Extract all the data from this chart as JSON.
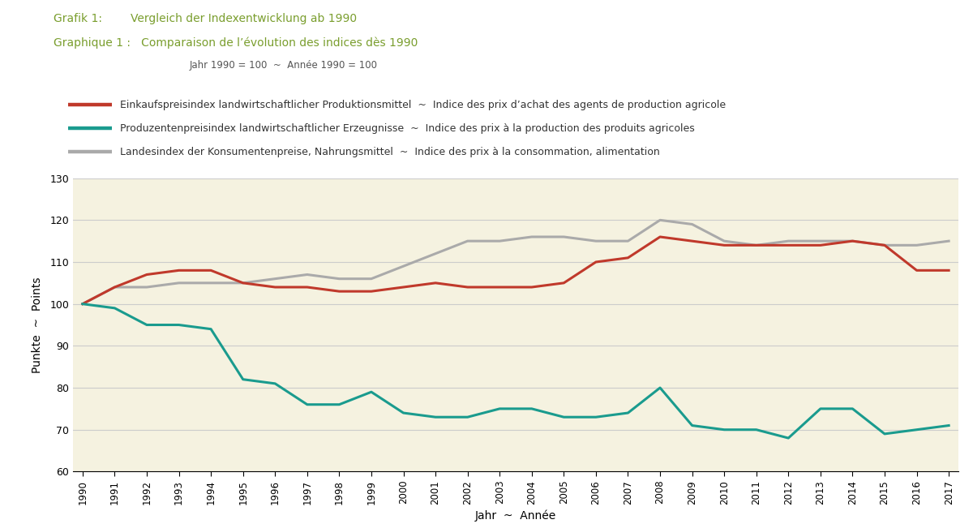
{
  "title_line1": "Grafik 1:        Vergleich der Indexentwicklung ab 1990",
  "title_line2": "Graphique 1 :   Comparaison de l’évolution des indices dès 1990",
  "subtitle": "Jahr 1990 = 100  ~  Année 1990 = 100",
  "xlabel": "Jahr  ~  Année",
  "ylabel": "Punkte  ~  Points",
  "years": [
    1990,
    1991,
    1992,
    1993,
    1994,
    1995,
    1996,
    1997,
    1998,
    1999,
    2000,
    2001,
    2002,
    2003,
    2004,
    2005,
    2006,
    2007,
    2008,
    2009,
    2010,
    2011,
    2012,
    2013,
    2014,
    2015,
    2016,
    2017
  ],
  "red_series": [
    100,
    104,
    107,
    108,
    108,
    105,
    104,
    104,
    103,
    103,
    104,
    105,
    104,
    104,
    104,
    105,
    110,
    111,
    116,
    115,
    114,
    114,
    114,
    114,
    115,
    114,
    108,
    108
  ],
  "teal_series": [
    100,
    99,
    95,
    95,
    94,
    82,
    81,
    76,
    76,
    79,
    74,
    73,
    73,
    75,
    75,
    73,
    73,
    74,
    80,
    71,
    70,
    70,
    68,
    75,
    75,
    69,
    70,
    71
  ],
  "gray_series": [
    100,
    104,
    104,
    105,
    105,
    105,
    106,
    107,
    106,
    106,
    109,
    112,
    115,
    115,
    116,
    116,
    115,
    115,
    120,
    119,
    115,
    114,
    115,
    115,
    115,
    114,
    114,
    115
  ],
  "red_color": "#c0392b",
  "teal_color": "#1a9b8e",
  "gray_color": "#aaaaaa",
  "background_color": "#f5f2e0",
  "ylim": [
    60,
    130
  ],
  "yticks": [
    60,
    70,
    80,
    90,
    100,
    110,
    120,
    130
  ],
  "title_color": "#7a9e2e",
  "subtitle_color": "#555555",
  "text_color": "#333333",
  "legend1_de": "Einkaufspreisindex landwirtschaftlicher Produktionsmittel",
  "legend1_sep": "  ~  ",
  "legend1_fr": "Indice des prix d’achat des agents de production agricole",
  "legend2_de": "Produzentenpreisindex landwirtschaftlicher Erzeugnisse",
  "legend2_sep": "  ~  ",
  "legend2_fr": "Indice des prix à la production des produits agricoles",
  "legend3_de": "Landesindex der Konsumentenpreise, Nahrungsmittel",
  "legend3_sep": "  ~  ",
  "legend3_fr": "Indice des prix à la consommation, alimentation",
  "line_width": 2.2,
  "grid_color": "#cccccc"
}
